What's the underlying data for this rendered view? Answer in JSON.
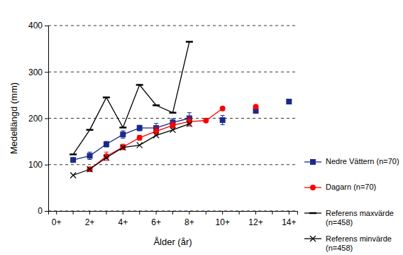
{
  "chart_data": {
    "type": "line",
    "x_label": "Ålder (år)",
    "y_label": "Medellängd (mm)",
    "categories": [
      "0+",
      null,
      "2+",
      null,
      "4+",
      null,
      "6+",
      null,
      "8+",
      null,
      "10+",
      null,
      "12+",
      null,
      "14+"
    ],
    "ylim": [
      0,
      400
    ],
    "yticks": [
      0,
      100,
      200,
      300,
      400
    ],
    "grid": true,
    "legend": "right",
    "series": [
      {
        "name": "Nedre Vättern (n=70)",
        "color": "#1a2a8c",
        "marker": "square",
        "line_style": "solid",
        "values": [
          null,
          110,
          119,
          144,
          165,
          179,
          179,
          191,
          200,
          null,
          196,
          null,
          216,
          null,
          236
        ],
        "errors": [
          null,
          5,
          8,
          6,
          8,
          6,
          10,
          8,
          12,
          null,
          10,
          null,
          null,
          null,
          null
        ]
      },
      {
        "name": "Dagarn (n=70)",
        "color": "#ff0000",
        "marker": "circle",
        "line_style": "solid",
        "values": [
          null,
          null,
          90,
          118,
          138,
          158,
          172,
          185,
          193,
          195,
          221,
          null,
          225,
          null,
          null
        ],
        "errors": [
          null,
          null,
          4,
          9,
          6,
          5,
          9,
          7,
          10,
          null,
          null,
          null,
          null,
          null,
          null
        ]
      },
      {
        "name": "Referens maxvärde (n=458)",
        "color": "#000000",
        "marker": "dash",
        "line_style": "solid",
        "values": [
          null,
          122,
          175,
          245,
          180,
          272,
          228,
          212,
          365,
          null,
          null,
          null,
          null,
          null,
          null
        ]
      },
      {
        "name": "Referens minvärde (n=458)",
        "color": "#000000",
        "marker": "x",
        "line_style": "solid",
        "values": [
          null,
          77,
          90,
          115,
          137,
          142,
          163,
          175,
          188,
          null,
          null,
          null,
          null,
          null,
          null
        ]
      }
    ]
  }
}
